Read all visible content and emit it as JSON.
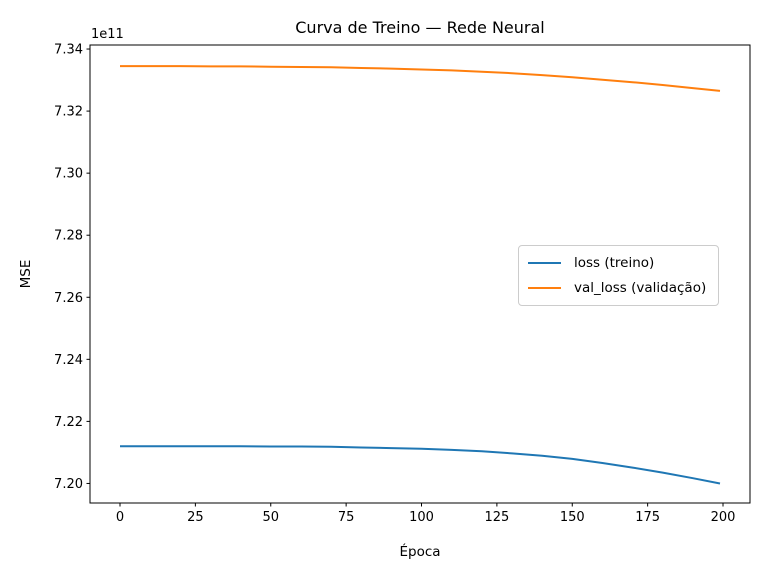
{
  "chart_data": {
    "type": "line",
    "title": "Curva de Treino — Rede Neural",
    "xlabel": "Época",
    "ylabel": "MSE",
    "y_offset_text": "1e11",
    "x_ticks": [
      0,
      25,
      50,
      75,
      100,
      125,
      150,
      175,
      200
    ],
    "y_tick_labels": [
      "7.20",
      "7.22",
      "7.24",
      "7.26",
      "7.28",
      "7.30",
      "7.32",
      "7.34"
    ],
    "xlim": [
      -9.95,
      208.95
    ],
    "ylim_1e11": [
      7.1937,
      7.3413
    ],
    "grid": false,
    "legend_loc": "center right",
    "x": [
      0,
      10,
      20,
      30,
      40,
      50,
      60,
      70,
      80,
      90,
      100,
      110,
      120,
      130,
      140,
      150,
      160,
      170,
      180,
      190,
      199
    ],
    "series": [
      {
        "name": "loss (treino)",
        "color": "#1f77b4",
        "values_1e11": [
          7.212,
          7.212,
          7.212,
          7.212,
          7.212,
          7.2119,
          7.2119,
          7.2118,
          7.2116,
          7.2114,
          7.2112,
          7.2108,
          7.2104,
          7.2097,
          7.2089,
          7.2079,
          7.2066,
          7.2051,
          7.2035,
          7.2017,
          7.2
        ]
      },
      {
        "name": "val_loss (validação)",
        "color": "#ff7f0e",
        "values_1e11": [
          7.3345,
          7.3345,
          7.3345,
          7.3344,
          7.3344,
          7.3343,
          7.3342,
          7.3341,
          7.3339,
          7.3337,
          7.3334,
          7.3331,
          7.3327,
          7.3322,
          7.3316,
          7.3309,
          7.3301,
          7.3293,
          7.3284,
          7.3274,
          7.3265
        ]
      }
    ]
  }
}
